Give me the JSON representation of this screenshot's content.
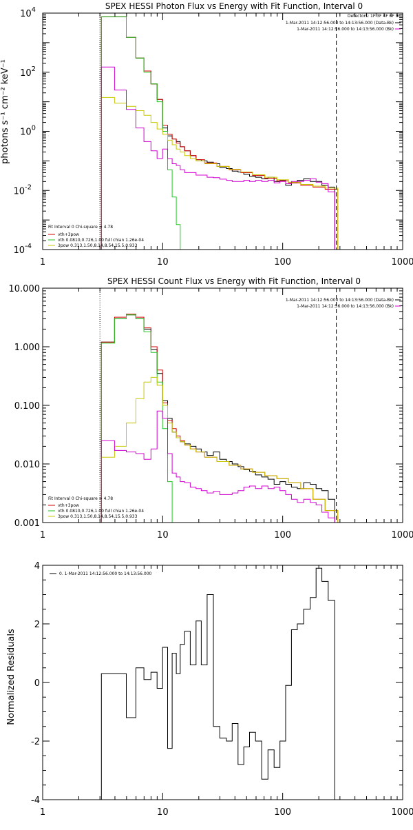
{
  "chart_data": [
    {
      "type": "line",
      "title": "SPEX HESSI Photon Flux vs Energy with Fit Function, Interval 0",
      "xlabel": "",
      "ylabel": "photons s⁻¹ cm⁻² keV⁻¹",
      "xscale": "log",
      "yscale": "log",
      "xlim": [
        1,
        1000
      ],
      "ylim": [
        0.0001,
        10000
      ],
      "x_ticks": [
        "1",
        "10",
        "100",
        "1000"
      ],
      "y_ticks": [
        {
          "value": 0.0001,
          "base": "10",
          "exp": "-4"
        },
        {
          "value": 0.01,
          "base": "10",
          "exp": "-2"
        },
        {
          "value": 1,
          "base": "10",
          "exp": "0"
        },
        {
          "value": 100,
          "base": "10",
          "exp": "2"
        },
        {
          "value": 10000,
          "base": "10",
          "exp": "4"
        }
      ],
      "legend_top_right": [
        "Detectors: 1F 3F 4F 6F 9F",
        "1-Mar-2011 14:12:56.000 to 14:13:56.000 (Data-Bk)",
        "1-Mar-2011 14:12:56.000 to 14:13:56.000 (Bk)"
      ],
      "legend_bottom_left": [
        "Fit Interval 0   Chi-square = 4.78",
        "vth+3pow",
        "vth 0.0810,0.726,1.00  full chian 1.26e-04",
        "3pow 0.313,1.50,8.14,8.54,15.5,0.933"
      ],
      "vlines": [
        {
          "x": 3,
          "style": "dotted",
          "color": "#000000"
        },
        {
          "x": 280,
          "style": "dashed",
          "color": "#000000"
        }
      ],
      "series": [
        {
          "name": "Data-Bk",
          "color": "#000000",
          "x": [
            3.5,
            4.5,
            5.5,
            6.5,
            7.5,
            8.5,
            9.5,
            10.5,
            11.5,
            12.5,
            13.5,
            14.5,
            16,
            18,
            20,
            22,
            25,
            28,
            32,
            36,
            40,
            45,
            50,
            56,
            63,
            71,
            80,
            90,
            100,
            112,
            125,
            140,
            160,
            180,
            200,
            225,
            255
          ],
          "values": [
            7500,
            7500,
            1500,
            300,
            110,
            40,
            12,
            1.3,
            0.7,
            0.55,
            0.45,
            0.3,
            0.22,
            0.15,
            0.11,
            0.1,
            0.09,
            0.08,
            0.06,
            0.055,
            0.045,
            0.042,
            0.035,
            0.03,
            0.028,
            0.025,
            0.028,
            0.02,
            0.022,
            0.015,
            0.018,
            0.022,
            0.025,
            0.02,
            0.02,
            0.015,
            0.013
          ]
        },
        {
          "name": "vth+3pow",
          "color": "#d40000",
          "x": [
            3.5,
            4.5,
            5.5,
            6.5,
            7.5,
            8.5,
            9.5,
            10.5,
            11.5,
            12.5,
            13.5,
            14.5,
            16,
            18,
            20,
            25,
            32,
            40,
            50,
            63,
            80,
            100,
            125,
            160,
            200,
            255
          ],
          "values": [
            7500,
            7500,
            1500,
            300,
            110,
            40,
            12,
            1.6,
            0.8,
            0.55,
            0.4,
            0.3,
            0.22,
            0.15,
            0.11,
            0.085,
            0.065,
            0.05,
            0.04,
            0.032,
            0.026,
            0.021,
            0.018,
            0.015,
            0.013,
            0.011
          ]
        },
        {
          "name": "vth",
          "color": "#22c822",
          "x": [
            3.5,
            4.5,
            5.5,
            6.5,
            7.5,
            8.5,
            9.5,
            10.5,
            11.5,
            12.5,
            13.5,
            14.5
          ],
          "values": [
            7500,
            7500,
            1500,
            300,
            100,
            40,
            10,
            1.0,
            0.05,
            0.006,
            0.0007,
            0.0001
          ]
        },
        {
          "name": "3pow",
          "color": "#c8c800",
          "x": [
            3.5,
            4.5,
            5.5,
            6.5,
            7.5,
            8.5,
            9.5,
            10.5,
            11.5,
            12.5,
            13.5,
            14.5,
            16,
            18,
            20,
            25,
            32,
            40,
            50,
            63,
            80,
            100,
            125,
            160,
            200,
            255
          ],
          "values": [
            14,
            9,
            7,
            5,
            3.5,
            2.0,
            1.2,
            0.8,
            0.5,
            0.35,
            0.25,
            0.2,
            0.15,
            0.12,
            0.1,
            0.08,
            0.065,
            0.052,
            0.042,
            0.034,
            0.028,
            0.023,
            0.019,
            0.016,
            0.014,
            0.012
          ]
        },
        {
          "name": "Bk",
          "color": "#d000d0",
          "x": [
            3.5,
            4.5,
            5.5,
            6.5,
            7.5,
            8.5,
            9.5,
            10.5,
            11.5,
            12.5,
            13.5,
            14.5,
            16,
            18,
            20,
            22,
            25,
            28,
            32,
            36,
            40,
            45,
            50,
            56,
            63,
            71,
            80,
            90,
            100,
            112,
            125,
            140,
            160,
            180,
            200,
            225,
            255
          ],
          "values": [
            150,
            25,
            5.5,
            1.3,
            0.45,
            0.22,
            0.12,
            0.25,
            0.12,
            0.08,
            0.07,
            0.05,
            0.04,
            0.04,
            0.033,
            0.033,
            0.028,
            0.027,
            0.024,
            0.022,
            0.02,
            0.02,
            0.022,
            0.02,
            0.022,
            0.02,
            0.022,
            0.018,
            0.02,
            0.017,
            0.02,
            0.02,
            0.022,
            0.025,
            0.019,
            0.017,
            0.009
          ]
        }
      ]
    },
    {
      "type": "line",
      "title": "SPEX HESSI Count Flux vs Energy with Fit Function, Interval 0",
      "xlabel": "",
      "ylabel": "",
      "xscale": "log",
      "yscale": "log",
      "xlim": [
        1,
        1000
      ],
      "ylim": [
        0.001,
        10
      ],
      "x_ticks": [
        "1",
        "10",
        "100",
        "1000"
      ],
      "y_ticks": [
        {
          "value": 0.001,
          "label": "0.001"
        },
        {
          "value": 0.01,
          "label": "0.010"
        },
        {
          "value": 0.1,
          "label": "0.100"
        },
        {
          "value": 1,
          "label": "1.000"
        },
        {
          "value": 10,
          "label": "10.000"
        }
      ],
      "legend_top_right": [
        "1-Mar-2011 14:12:56.000 to 14:13:56.000 (Data-Bk)",
        "1-Mar-2011 14:12:56.000 to 14:13:56.000 (Bk)"
      ],
      "legend_bottom_left": [
        "Fit Interval 0   Chi-square = 4.78",
        "vth+3pow",
        "vth 0.0810,0.726,1.00  full chian 1.26e-04",
        "3pow 0.313,1.50,8.14,8.54,15.5,0.933"
      ],
      "vlines": [
        {
          "x": 3,
          "style": "dotted",
          "color": "#000000"
        },
        {
          "x": 280,
          "style": "dashed",
          "color": "#000000"
        }
      ],
      "series": [
        {
          "name": "Data-Bk",
          "color": "#000000",
          "x": [
            3.5,
            4.5,
            5.5,
            6.5,
            7.5,
            8.5,
            9.5,
            10.5,
            11.5,
            12.5,
            13.5,
            14.5,
            16,
            18,
            20,
            22,
            25,
            28,
            32,
            36,
            40,
            45,
            50,
            56,
            63,
            71,
            80,
            90,
            100,
            112,
            125,
            140,
            160,
            180,
            200,
            225,
            255
          ],
          "values": [
            1.2,
            3.0,
            3.5,
            3.0,
            2.0,
            0.9,
            0.35,
            0.12,
            0.06,
            0.035,
            0.028,
            0.024,
            0.022,
            0.02,
            0.018,
            0.016,
            0.014,
            0.016,
            0.012,
            0.011,
            0.01,
            0.009,
            0.008,
            0.0075,
            0.0065,
            0.006,
            0.0055,
            0.0045,
            0.005,
            0.0045,
            0.004,
            0.0038,
            0.0048,
            0.0045,
            0.0038,
            0.0035,
            0.0025
          ]
        },
        {
          "name": "vth+3pow",
          "color": "#d40000",
          "x": [
            3.5,
            4.5,
            5.5,
            6.5,
            7.5,
            8.5,
            9.5,
            10.5,
            11.5,
            12.5,
            13.5,
            14.5,
            16,
            18,
            20,
            25,
            32,
            40,
            50,
            63,
            80,
            100,
            125,
            160,
            200,
            255
          ],
          "values": [
            1.2,
            3.2,
            3.6,
            3.2,
            2.1,
            1.0,
            0.4,
            0.11,
            0.055,
            0.04,
            0.03,
            0.025,
            0.021,
            0.018,
            0.016,
            0.013,
            0.011,
            0.0095,
            0.0082,
            0.0072,
            0.0063,
            0.0056,
            0.0048,
            0.0038,
            0.0025,
            0.0016
          ]
        },
        {
          "name": "vth",
          "color": "#22c822",
          "x": [
            3.5,
            4.5,
            5.5,
            6.5,
            7.5,
            8.5,
            9.5,
            10.5,
            11.5,
            12.5
          ],
          "values": [
            1.15,
            3.0,
            3.5,
            3.0,
            1.8,
            0.8,
            0.25,
            0.04,
            0.005,
            0.001
          ]
        },
        {
          "name": "3pow",
          "color": "#c8c800",
          "x": [
            3.5,
            4.5,
            5.5,
            6.5,
            7.5,
            8.5,
            9.5,
            10.5,
            11.5,
            12.5,
            13.5,
            14.5,
            16,
            18,
            20,
            25,
            32,
            40,
            50,
            63,
            80,
            100,
            125,
            160,
            200,
            255
          ],
          "values": [
            0.013,
            0.02,
            0.05,
            0.13,
            0.25,
            0.3,
            0.22,
            0.1,
            0.05,
            0.035,
            0.028,
            0.024,
            0.021,
            0.018,
            0.016,
            0.013,
            0.011,
            0.0095,
            0.0082,
            0.0072,
            0.0063,
            0.0056,
            0.0048,
            0.0038,
            0.0025,
            0.0016
          ]
        },
        {
          "name": "Bk",
          "color": "#d000d0",
          "x": [
            3.5,
            4.5,
            5.5,
            6.5,
            7.5,
            8.5,
            9.5,
            10.5,
            11.5,
            12.5,
            13.5,
            14.5,
            16,
            18,
            20,
            22,
            25,
            28,
            32,
            36,
            40,
            45,
            50,
            56,
            63,
            71,
            80,
            90,
            100,
            112,
            125,
            140,
            160,
            180,
            200,
            225,
            255
          ],
          "values": [
            0.025,
            0.017,
            0.016,
            0.015,
            0.012,
            0.018,
            0.08,
            0.06,
            0.015,
            0.007,
            0.006,
            0.005,
            0.0048,
            0.004,
            0.0038,
            0.0035,
            0.0032,
            0.0034,
            0.003,
            0.003,
            0.0032,
            0.0035,
            0.004,
            0.0042,
            0.0038,
            0.0042,
            0.0038,
            0.004,
            0.0035,
            0.003,
            0.0025,
            0.0022,
            0.0025,
            0.0022,
            0.002,
            0.0015,
            0.0012
          ]
        }
      ]
    },
    {
      "type": "line",
      "title": "",
      "xlabel": "",
      "ylabel": "Normalized Residuals",
      "xscale": "log",
      "yscale": "linear",
      "xlim": [
        1,
        1000
      ],
      "ylim": [
        -4,
        4
      ],
      "x_ticks": [
        "1",
        "10",
        "100",
        "1000"
      ],
      "y_ticks": [
        {
          "value": -4,
          "label": "-4"
        },
        {
          "value": -2,
          "label": "-2"
        },
        {
          "value": 0,
          "label": "0"
        },
        {
          "value": 2,
          "label": "2"
        },
        {
          "value": 4,
          "label": "4"
        }
      ],
      "legend_top_left": "0. 1-Mar-2011 14:12:56.000 to 14:13:56.000",
      "series": [
        {
          "name": "0. 1-Mar-2011 14:12:56.000 to 14:13:56.000",
          "color": "#000000",
          "x": [
            3.5,
            4.5,
            5.5,
            6.5,
            7.5,
            8.5,
            9.5,
            10.5,
            11.5,
            12.5,
            13.5,
            14.5,
            16,
            18,
            20,
            22,
            25,
            28,
            32,
            36,
            40,
            45,
            50,
            56,
            63,
            71,
            80,
            90,
            100,
            112,
            125,
            140,
            160,
            180,
            200,
            225,
            255
          ],
          "values": [
            0.3,
            0.3,
            -1.2,
            0.5,
            0.1,
            0.35,
            -0.2,
            1.2,
            -2.25,
            1.0,
            0.3,
            1.3,
            1.75,
            0.6,
            2.1,
            0.6,
            3.0,
            -1.5,
            -1.9,
            -2.0,
            -1.4,
            -2.8,
            -2.2,
            -1.7,
            -2.0,
            -3.3,
            -2.3,
            -2.9,
            -2.0,
            -0.1,
            1.8,
            2.0,
            2.5,
            2.9,
            3.9,
            3.45,
            2.8
          ]
        }
      ]
    }
  ]
}
